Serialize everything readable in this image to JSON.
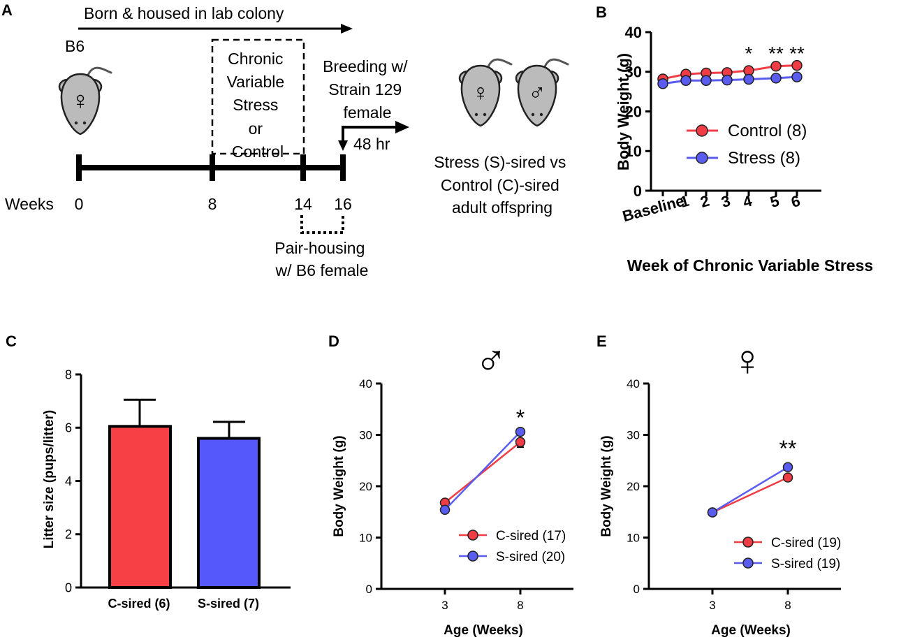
{
  "panel_letters": {
    "a": "A",
    "b": "B",
    "c": "C",
    "d": "D",
    "e": "E"
  },
  "colors": {
    "control": "#f03c45",
    "stress": "#5a5cf0",
    "control_bar": "#f73f46",
    "stress_bar": "#5558fb",
    "ink": "#000000",
    "mouse_body": "#bbbbbb"
  },
  "panel_a": {
    "born_text": "Born & housed in lab colony",
    "strain": "B6",
    "cvs_lines": [
      "Chronic",
      "Variable",
      "Stress",
      "or",
      "Control"
    ],
    "breeding_lines": [
      "Breeding w/",
      "Strain 129",
      "female"
    ],
    "hr_label": "48 hr",
    "weeks_label": "Weeks",
    "week_ticks": [
      "0",
      "8",
      "14",
      "16"
    ],
    "pair_lines": [
      "Pair-housing",
      "w/ B6 female"
    ],
    "offspring_lines": [
      "Stress (S)-sired vs",
      "Control (C)-sired",
      "adult offspring"
    ],
    "female_symbol": "♀",
    "male_symbol": "♂",
    "icons": [
      "mouse-female-icon",
      "mouse-female-icon",
      "mouse-male-icon"
    ]
  },
  "chart_data": [
    {
      "id": "B",
      "type": "line",
      "title": "",
      "xlabel": "Week of Chronic Variable Stress",
      "ylabel": "Body Weight (g)",
      "categories": [
        "Baseline",
        "1",
        "2",
        "3",
        "4",
        "5",
        "6"
      ],
      "ylim": [
        0,
        40
      ],
      "yticks": [
        "0",
        "10",
        "20",
        "30",
        "40"
      ],
      "series": [
        {
          "name": "Control (8)",
          "color_key": "control",
          "values": [
            28.2,
            29.4,
            29.7,
            29.8,
            30.3,
            31.4,
            31.6
          ]
        },
        {
          "name": "Stress (8)",
          "color_key": "stress",
          "values": [
            27.0,
            27.8,
            27.8,
            27.9,
            28.1,
            28.4,
            28.7
          ]
        }
      ],
      "annotations": [
        {
          "category": "4",
          "text": "*"
        },
        {
          "category": "5",
          "text": "**"
        },
        {
          "category": "6",
          "text": "**"
        }
      ],
      "legend": "center"
    },
    {
      "id": "C",
      "type": "bar",
      "xlabel": "",
      "ylabel": "Litter size (pups/litter)",
      "categories": [
        "C-sired (6)",
        "S-sired  (7)"
      ],
      "values": [
        6.05,
        5.6
      ],
      "errors": [
        1.0,
        0.62
      ],
      "bar_color_keys": [
        "control_bar",
        "stress_bar"
      ],
      "ylim": [
        0,
        8
      ],
      "yticks": [
        "0",
        "2",
        "4",
        "6",
        "8"
      ]
    },
    {
      "id": "D",
      "type": "line",
      "title": "♂",
      "xlabel": "Age (Weeks)",
      "ylabel": "Body Weight (g)",
      "x": [
        "3",
        "8"
      ],
      "ylim": [
        0,
        40
      ],
      "yticks": [
        "0",
        "10",
        "20",
        "30",
        "40"
      ],
      "series": [
        {
          "name": "C-sired (17)",
          "color_key": "control",
          "values": [
            16.8,
            28.6
          ],
          "errors": [
            0,
            1.0
          ]
        },
        {
          "name": "S-sired (20)",
          "color_key": "stress",
          "values": [
            15.4,
            30.6
          ],
          "errors": [
            0,
            0.5
          ]
        }
      ],
      "annotations": [
        {
          "x": "8",
          "text": "*"
        }
      ],
      "legend": "bottom-right"
    },
    {
      "id": "E",
      "type": "line",
      "title": "♀",
      "xlabel": "Age (Weeks)",
      "ylabel": "Body Weight (g)",
      "x": [
        "3",
        "8"
      ],
      "ylim": [
        0,
        40
      ],
      "yticks": [
        "0",
        "10",
        "20",
        "30",
        "40"
      ],
      "series": [
        {
          "name": "C-sired (19)",
          "color_key": "control",
          "values": [
            14.9,
            21.7
          ],
          "errors": [
            0,
            0
          ]
        },
        {
          "name": "S-sired (19)",
          "color_key": "stress",
          "values": [
            14.9,
            23.7
          ],
          "errors": [
            0,
            0
          ]
        }
      ],
      "annotations": [
        {
          "x": "8",
          "text": "**"
        }
      ],
      "legend": "bottom-right"
    }
  ]
}
